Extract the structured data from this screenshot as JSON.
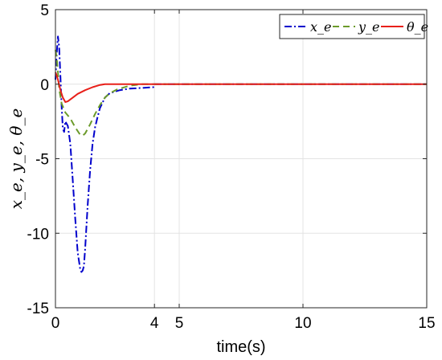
{
  "chart_data": {
    "type": "line",
    "xlabel": "time(s)",
    "ylabel": "x_e, y_e, θ_e",
    "xlim": [
      0,
      15
    ],
    "ylim": [
      -15,
      5
    ],
    "xticks": [
      0,
      4,
      5,
      10,
      15
    ],
    "yticks": [
      5,
      0,
      -5,
      -10,
      -15
    ],
    "grid": true,
    "legend_position": "top-right",
    "series": [
      {
        "name": "x_e",
        "color": "#0000cc",
        "style": "dash-dot",
        "x": [
          0,
          0.05,
          0.1,
          0.15,
          0.2,
          0.25,
          0.3,
          0.35,
          0.4,
          0.5,
          0.6,
          0.7,
          0.8,
          0.9,
          1.0,
          1.05,
          1.1,
          1.15,
          1.2,
          1.3,
          1.4,
          1.5,
          1.6,
          1.7,
          1.8,
          2.0,
          2.2,
          2.4,
          2.6,
          3.0,
          3.5,
          3.95,
          4.0,
          5,
          10,
          15
        ],
        "y": [
          0.3,
          2.0,
          3.2,
          2.5,
          0.5,
          -1.5,
          -3.0,
          -3.2,
          -2.5,
          -2.8,
          -4.0,
          -6.5,
          -9.0,
          -11.3,
          -12.4,
          -12.6,
          -12.5,
          -12.2,
          -11.0,
          -8.2,
          -5.8,
          -4.0,
          -2.9,
          -2.2,
          -1.6,
          -0.9,
          -0.6,
          -0.5,
          -0.4,
          -0.3,
          -0.25,
          -0.2,
          0,
          0,
          0,
          0
        ]
      },
      {
        "name": "y_e",
        "color": "#6b9a2a",
        "style": "dashed",
        "x": [
          0,
          0.05,
          0.1,
          0.15,
          0.25,
          0.4,
          0.6,
          0.8,
          1.0,
          1.1,
          1.2,
          1.4,
          1.6,
          1.8,
          2.0,
          2.2,
          2.5,
          3.0,
          3.5,
          4.0,
          5,
          10,
          15
        ],
        "y": [
          2.3,
          1.8,
          0.8,
          -0.3,
          -1.3,
          -1.9,
          -2.3,
          -2.9,
          -3.4,
          -3.45,
          -3.3,
          -2.7,
          -2.0,
          -1.4,
          -0.9,
          -0.6,
          -0.35,
          -0.1,
          0,
          0,
          0,
          0,
          0
        ]
      },
      {
        "name": "θ_e",
        "color": "#e8201a",
        "style": "solid",
        "x": [
          0,
          0.05,
          0.1,
          0.2,
          0.3,
          0.4,
          0.5,
          0.7,
          0.9,
          1.2,
          1.5,
          1.8,
          2.0,
          2.1,
          3,
          4,
          5,
          10,
          15
        ],
        "y": [
          0.8,
          0.6,
          0.3,
          -0.4,
          -0.9,
          -1.2,
          -1.15,
          -0.9,
          -0.65,
          -0.4,
          -0.2,
          -0.05,
          0,
          0,
          0,
          0,
          0,
          0,
          0
        ]
      }
    ]
  }
}
